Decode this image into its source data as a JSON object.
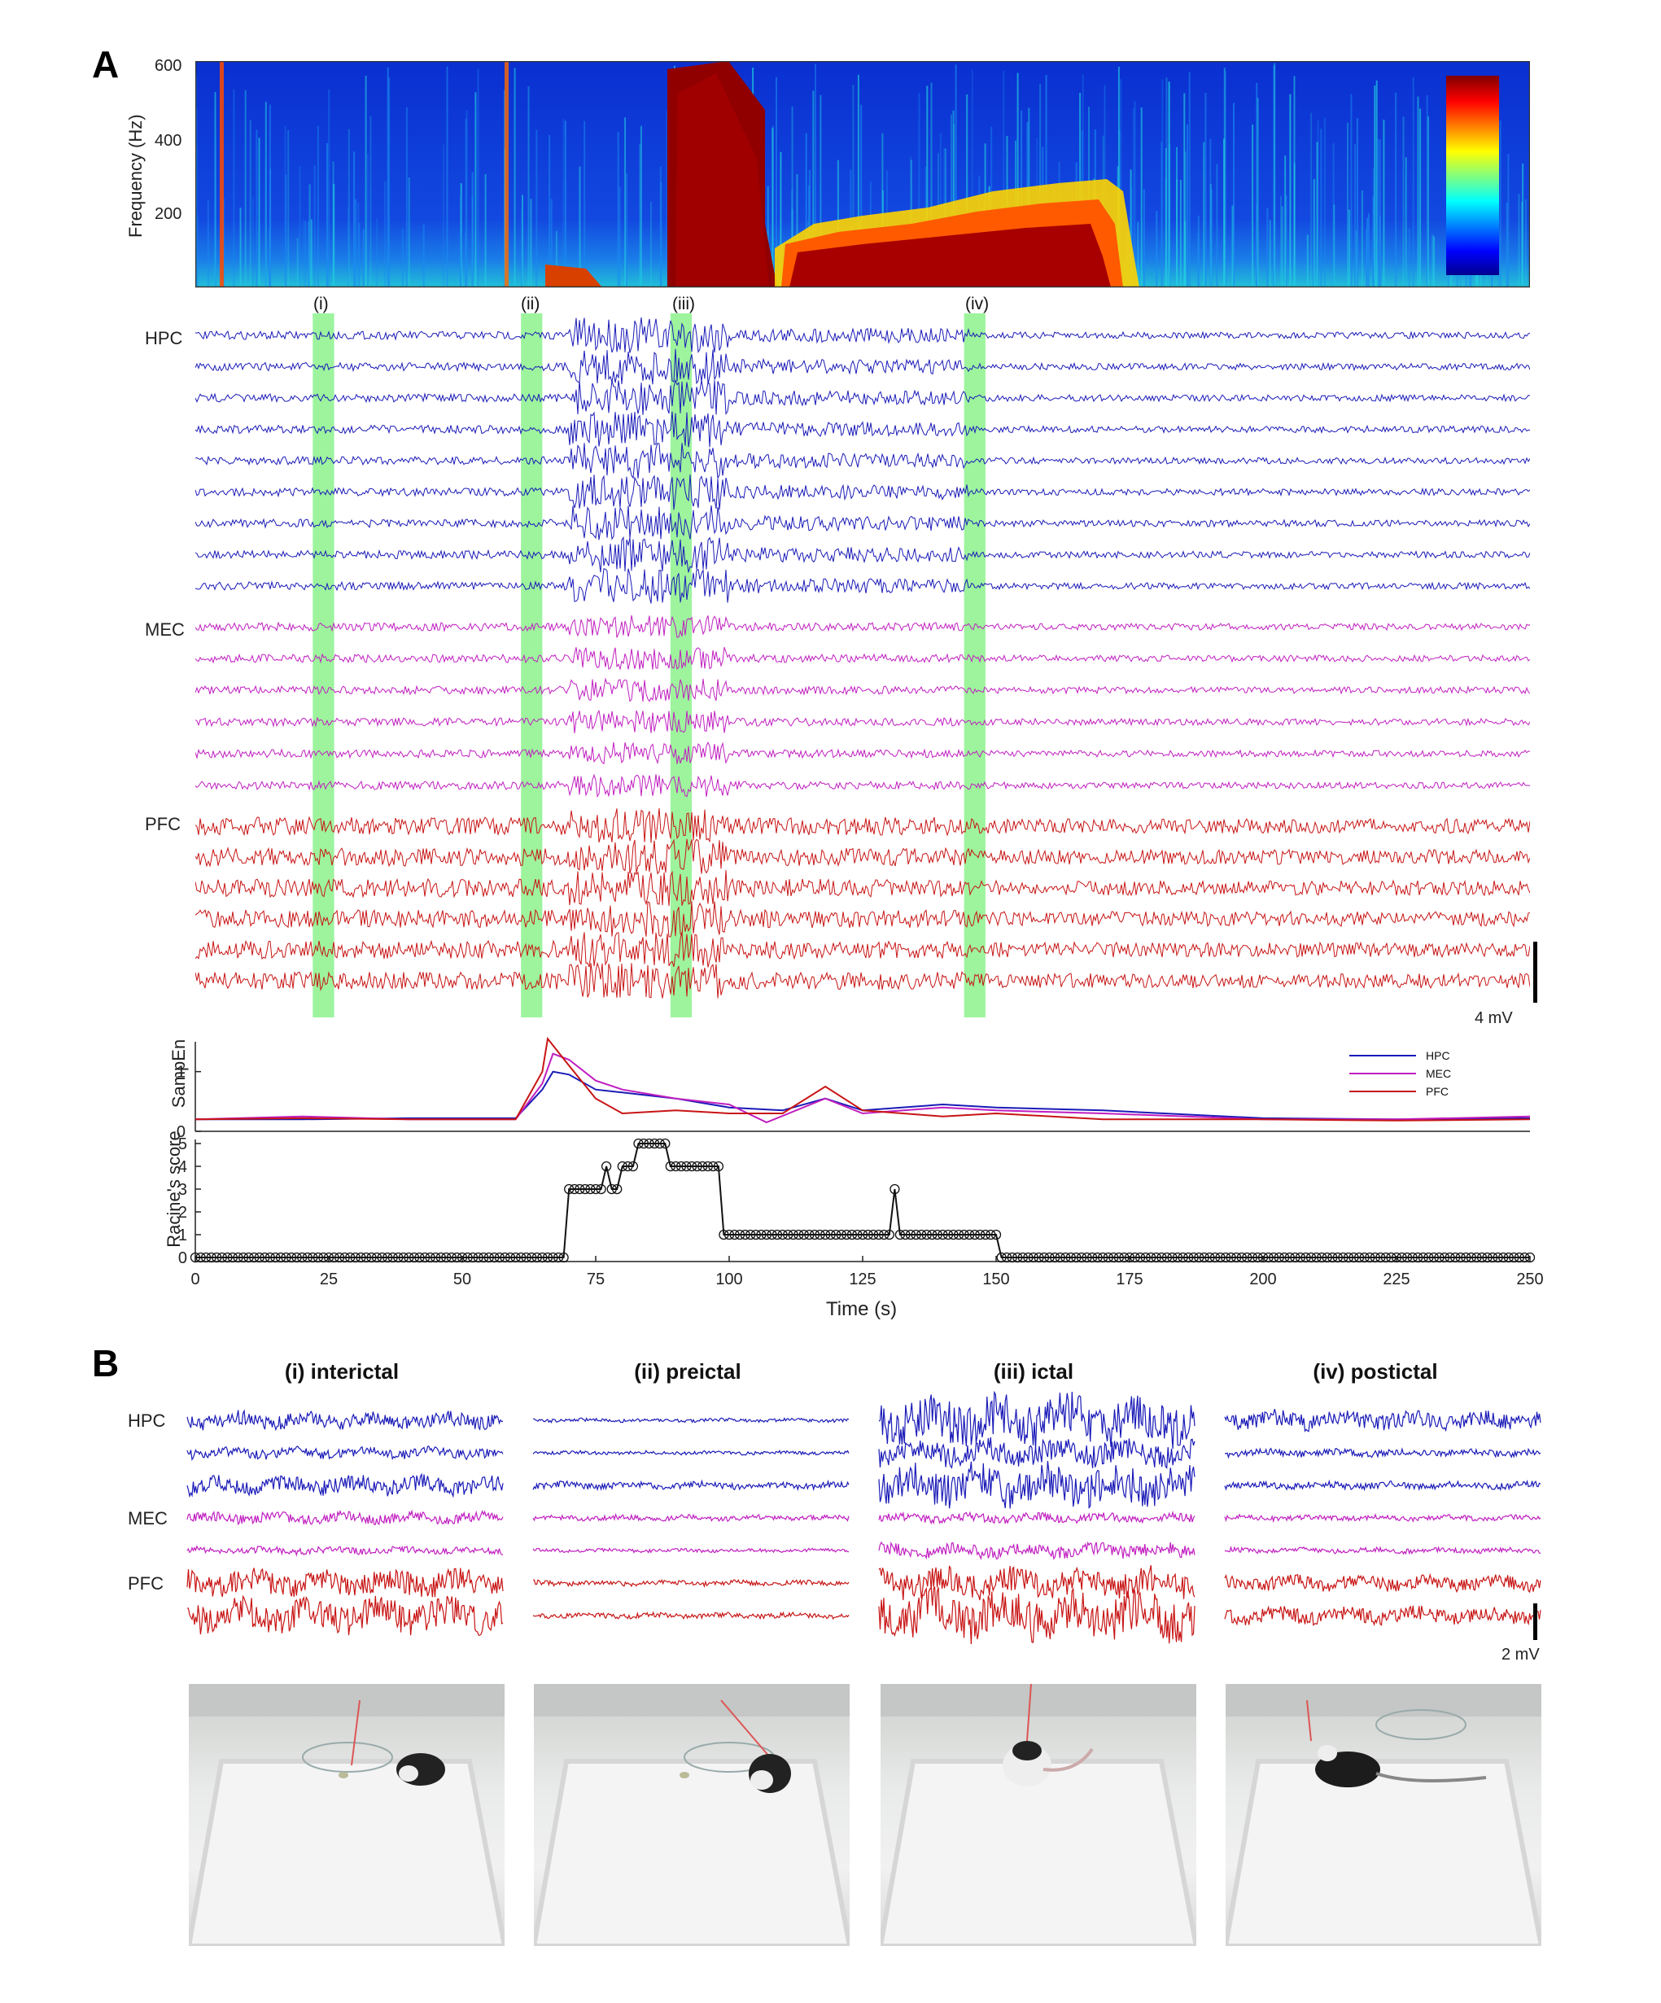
{
  "panel_a": {
    "letter": "A",
    "spectrogram": {
      "ylabel": "Frequency (Hz)",
      "yticks": [
        "600",
        "400",
        "200"
      ]
    },
    "windows": [
      "(i)",
      "(ii)",
      "(iii)",
      "(iv)"
    ],
    "regions": [
      "HPC",
      "MEC",
      "PFC"
    ],
    "scale_bar": "4 mV",
    "sampen": {
      "ylabel": "SampEn",
      "yticks": [
        "1",
        "0"
      ],
      "legend": [
        "HPC",
        "MEC",
        "PFC"
      ]
    },
    "racine": {
      "ylabel": "Racine's score",
      "yticks": [
        "5",
        "4",
        "3",
        "2",
        "1",
        "0"
      ]
    },
    "xaxis": {
      "label": "Time (s)",
      "ticks": [
        "0",
        "25",
        "50",
        "75",
        "100",
        "125",
        "150",
        "175",
        "200",
        "225",
        "250"
      ]
    }
  },
  "panel_b": {
    "letter": "B",
    "columns": [
      "(i) interictal",
      "(ii) preictal",
      "(iii) ictal",
      "(iv) postictal"
    ],
    "regions": [
      "HPC",
      "MEC",
      "PFC"
    ],
    "scale_bar": "2 mV"
  },
  "colors": {
    "HPC": "#1a1ab8",
    "MEC": "#c01ec0",
    "PFC": "#c81414",
    "window_highlight": "#7cf07c"
  },
  "chart_data": [
    {
      "type": "line",
      "title": "",
      "xlabel": "Time (s)",
      "ylabel": "SampEn",
      "xlim": [
        0,
        250
      ],
      "ylim": [
        0,
        1.5
      ],
      "series": [
        {
          "name": "HPC",
          "x": [
            0,
            20,
            40,
            60,
            65,
            67,
            70,
            75,
            80,
            90,
            100,
            110,
            118,
            125,
            140,
            150,
            170,
            200,
            225,
            250
          ],
          "values": [
            0.2,
            0.2,
            0.22,
            0.22,
            0.7,
            1.0,
            0.95,
            0.7,
            0.65,
            0.55,
            0.4,
            0.35,
            0.55,
            0.35,
            0.45,
            0.4,
            0.35,
            0.22,
            0.2,
            0.22
          ]
        },
        {
          "name": "MEC",
          "x": [
            0,
            20,
            40,
            60,
            65,
            67,
            70,
            75,
            80,
            90,
            100,
            107,
            118,
            125,
            140,
            150,
            170,
            200,
            225,
            250
          ],
          "values": [
            0.2,
            0.25,
            0.2,
            0.2,
            0.8,
            1.3,
            1.2,
            0.85,
            0.7,
            0.55,
            0.45,
            0.15,
            0.55,
            0.3,
            0.4,
            0.35,
            0.3,
            0.2,
            0.2,
            0.25
          ]
        },
        {
          "name": "PFC",
          "x": [
            0,
            20,
            40,
            60,
            65,
            66,
            70,
            75,
            80,
            90,
            100,
            110,
            118,
            125,
            140,
            150,
            170,
            200,
            225,
            250
          ],
          "values": [
            0.2,
            0.22,
            0.2,
            0.2,
            1.0,
            1.55,
            1.1,
            0.55,
            0.3,
            0.35,
            0.3,
            0.3,
            0.75,
            0.35,
            0.25,
            0.3,
            0.2,
            0.2,
            0.18,
            0.2
          ]
        }
      ]
    },
    {
      "type": "line",
      "title": "",
      "xlabel": "Time (s)",
      "ylabel": "Racine's score",
      "xlim": [
        0,
        250
      ],
      "ylim": [
        0,
        5
      ],
      "series": [
        {
          "name": "",
          "x": [
            0,
            69,
            70,
            76,
            77,
            78,
            79,
            80,
            81,
            82,
            83,
            84,
            88,
            89,
            98,
            99,
            130,
            131,
            132,
            150,
            151,
            250
          ],
          "values": [
            0,
            0,
            3,
            3,
            4,
            3,
            3,
            4,
            4,
            4,
            5,
            5,
            5,
            4,
            4,
            1,
            1,
            3,
            1,
            1,
            0,
            0
          ]
        }
      ]
    }
  ]
}
